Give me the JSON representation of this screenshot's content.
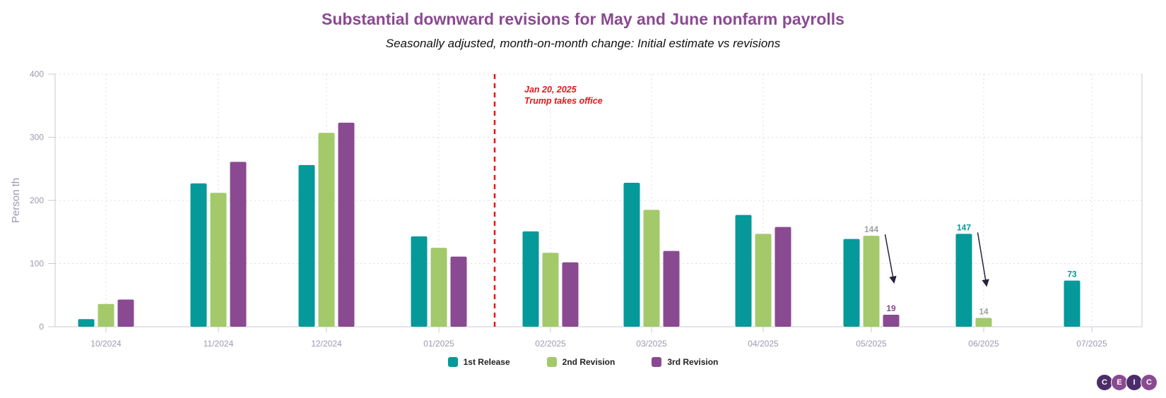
{
  "chart_data": {
    "type": "bar",
    "title": "Substantial downward revisions for May and June nonfarm payrolls",
    "subtitle": "Seasonally adjusted, month-on-month change: Initial estimate vs revisions",
    "ylabel": "Person th",
    "xlabel": "",
    "ylim": [
      0,
      400
    ],
    "yticks": [
      0,
      100,
      200,
      300,
      400
    ],
    "grid": true,
    "legend_position": "bottom",
    "categories": [
      "10/2024",
      "11/2024",
      "12/2024",
      "01/2025",
      "02/2025",
      "03/2025",
      "04/2025",
      "05/2025",
      "06/2025",
      "07/2025"
    ],
    "series": [
      {
        "name": "1st Release",
        "color": "#05999a",
        "values": [
          12,
          227,
          256,
          143,
          151,
          228,
          177,
          139,
          147,
          73
        ]
      },
      {
        "name": "2nd Revision",
        "color": "#a3c96a",
        "values": [
          36,
          212,
          307,
          125,
          117,
          185,
          147,
          144,
          14,
          null
        ]
      },
      {
        "name": "3rd Revision",
        "color": "#8a4a91",
        "values": [
          43,
          261,
          323,
          111,
          102,
          120,
          158,
          19,
          null,
          null
        ]
      }
    ],
    "data_labels": [
      {
        "category": "05/2025",
        "series": "2nd Revision",
        "text": "144"
      },
      {
        "category": "05/2025",
        "series": "3rd Revision",
        "text": "19"
      },
      {
        "category": "06/2025",
        "series": "1st Release",
        "text": "147"
      },
      {
        "category": "06/2025",
        "series": "2nd Revision",
        "text": "14"
      },
      {
        "category": "07/2025",
        "series": "1st Release",
        "text": "73"
      }
    ],
    "annotation": {
      "line1": "Jan 20, 2025",
      "line2": "Trump takes office",
      "color": "#e8141a",
      "between": [
        "01/2025",
        "02/2025"
      ]
    },
    "arrows": [
      {
        "from_category": "05/2025",
        "from_series": "2nd Revision",
        "to_series": "3rd Revision"
      },
      {
        "from_category": "06/2025",
        "from_series": "1st Release",
        "to_series": "2nd Revision"
      }
    ]
  },
  "logo": {
    "letters": [
      "C",
      "E",
      "I",
      "C"
    ],
    "colors": [
      "#4b2d69",
      "#8a4a91",
      "#4b2d69",
      "#8a4a91"
    ]
  }
}
